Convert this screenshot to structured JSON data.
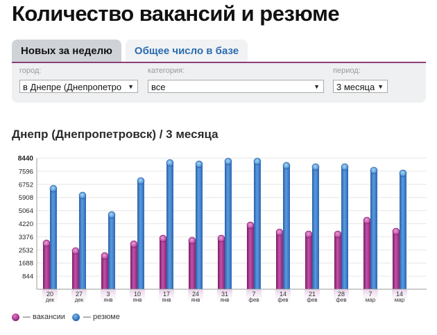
{
  "page": {
    "title": "Количество вакансий и резюме"
  },
  "tabs": [
    {
      "label": "Новых за неделю",
      "active": true
    },
    {
      "label": "Общее число в базе",
      "active": false
    }
  ],
  "filters": {
    "city": {
      "label": "город:",
      "value": "в Днепре (Днепропетро"
    },
    "category": {
      "label": "категория:",
      "value": "все"
    },
    "period": {
      "label": "период:",
      "value": "3 месяца"
    }
  },
  "colors": {
    "accent_rule": "#8a3d7a",
    "vacancies": "#a8398f",
    "resumes": "#3a7bc8",
    "tab_link": "#2a6cb0"
  },
  "chart_data": {
    "type": "bar",
    "title": "Днепр (Днепропетровск) / 3 месяца",
    "xlabel": "",
    "ylabel": "",
    "ylim": [
      0,
      8440
    ],
    "yticks": [
      844,
      1688,
      2532,
      3376,
      4220,
      5064,
      5908,
      6752,
      7596,
      8440
    ],
    "grid": true,
    "legend_position": "bottom-left",
    "categories": [
      {
        "day": "20",
        "month": "дек"
      },
      {
        "day": "27",
        "month": "дек"
      },
      {
        "day": "3",
        "month": "янв"
      },
      {
        "day": "10",
        "month": "янв"
      },
      {
        "day": "17",
        "month": "янв"
      },
      {
        "day": "24",
        "month": "янв"
      },
      {
        "day": "31",
        "month": "янв"
      },
      {
        "day": "7",
        "month": "фев"
      },
      {
        "day": "14",
        "month": "фев"
      },
      {
        "day": "21",
        "month": "фев"
      },
      {
        "day": "28",
        "month": "фев"
      },
      {
        "day": "7",
        "month": "мар"
      },
      {
        "day": "14",
        "month": "мар"
      }
    ],
    "series": [
      {
        "name": "вакансии",
        "legend_label": "— вакансии",
        "color": "#a8398f",
        "values": [
          3130,
          2640,
          2320,
          3080,
          3440,
          3310,
          3440,
          4290,
          3840,
          3710,
          3710,
          4600,
          3890
        ]
      },
      {
        "name": "резюме",
        "legend_label": "— резюме",
        "color": "#3a7bc8",
        "values": [
          6650,
          6210,
          4960,
          7150,
          8310,
          8220,
          8400,
          8400,
          8130,
          8040,
          8040,
          7820,
          7640
        ]
      }
    ]
  }
}
